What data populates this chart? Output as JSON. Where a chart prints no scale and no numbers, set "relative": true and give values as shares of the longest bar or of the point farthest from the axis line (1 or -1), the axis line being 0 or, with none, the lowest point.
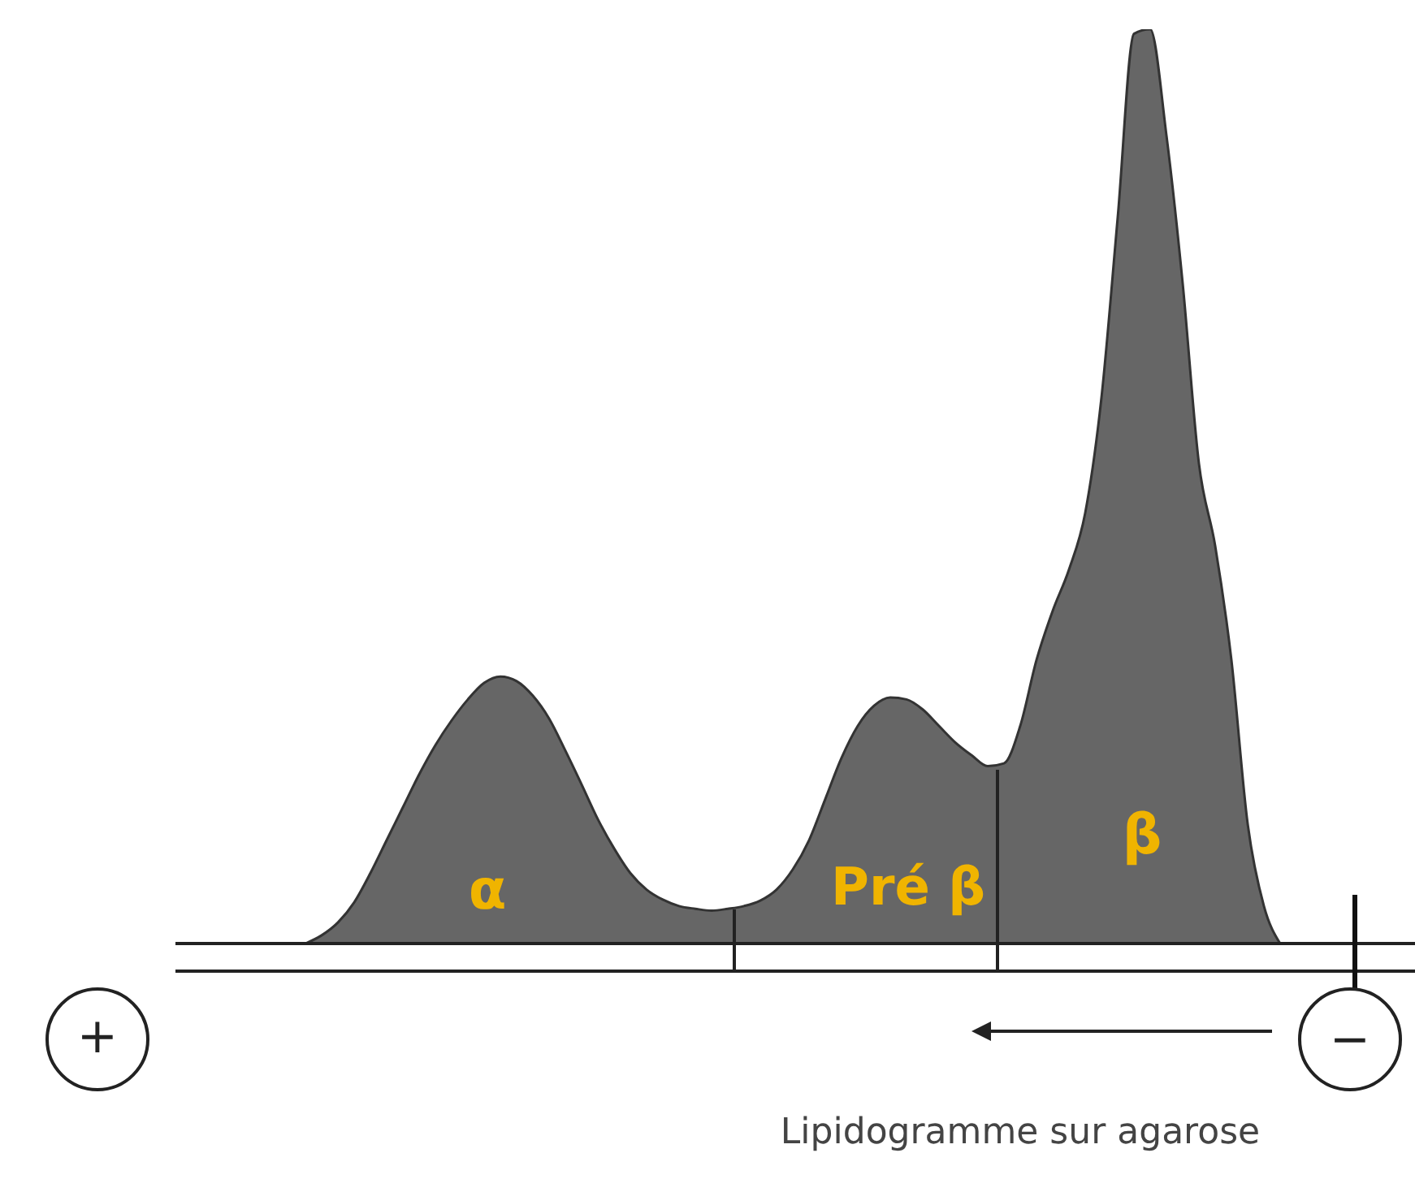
{
  "chart_data": {
    "type": "area",
    "relative": true,
    "color": "#666666",
    "categories": [
      null,
      null,
      null,
      null,
      null,
      null,
      null,
      null,
      null,
      null,
      null,
      null,
      null,
      null,
      null,
      null,
      null,
      null,
      null,
      null,
      null,
      null,
      null,
      null,
      null,
      null,
      null,
      null,
      null,
      null,
      null,
      null,
      null,
      null,
      null,
      null,
      null,
      null,
      null,
      null,
      null,
      null,
      null,
      null,
      null,
      null,
      null,
      null,
      null,
      null,
      null,
      null,
      null,
      null,
      null,
      null,
      null,
      null,
      null,
      null,
      null
    ],
    "values": [
      0,
      0.009,
      0.023,
      0.045,
      0.077,
      0.113,
      0.149,
      0.185,
      0.217,
      0.244,
      0.267,
      0.285,
      0.292,
      0.287,
      0.271,
      0.246,
      0.211,
      0.174,
      0.136,
      0.104,
      0.077,
      0.059,
      0.048,
      0.041,
      0.038,
      0.036,
      0.038,
      0.041,
      0.047,
      0.059,
      0.081,
      0.113,
      0.158,
      0.203,
      0.238,
      0.26,
      0.269,
      0.267,
      0.256,
      0.238,
      0.22,
      0.206,
      0.194,
      0.197,
      0.238,
      0.31,
      0.364,
      0.409,
      0.471,
      0.597,
      0.794,
      0.995,
      1,
      0.884,
      0.722,
      0.525,
      0.435,
      0.31,
      0.131,
      0.041,
      0
    ],
    "annotations": [
      "α",
      "Pré β",
      "β",
      "+",
      "−",
      "Lipidogramme sur agarose"
    ]
  }
}
